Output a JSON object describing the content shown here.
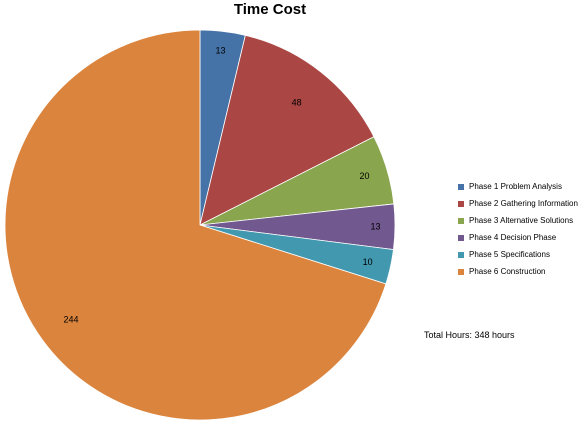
{
  "chart_data": {
    "type": "pie",
    "title": "Time Cost",
    "categories": [
      "Phase 1 Problem Analysis",
      "Phase 2 Gathering Information",
      "Phase 3 Alternative Solutions",
      "Phase 4 Decision Phase",
      "Phase 5 Specifications",
      "Phase 6 Construction"
    ],
    "values": [
      13,
      48,
      20,
      13,
      10,
      244
    ],
    "colors": [
      "#4572a7",
      "#aa4643",
      "#89a54e",
      "#71588f",
      "#4198af",
      "#db843d"
    ],
    "start_angle": "top (12 o'clock), clockwise",
    "legend": "right",
    "data_labels": [
      "13",
      "48",
      "20",
      "13",
      "10",
      "244"
    ],
    "annotation": "Total Hours: 348 hours"
  }
}
